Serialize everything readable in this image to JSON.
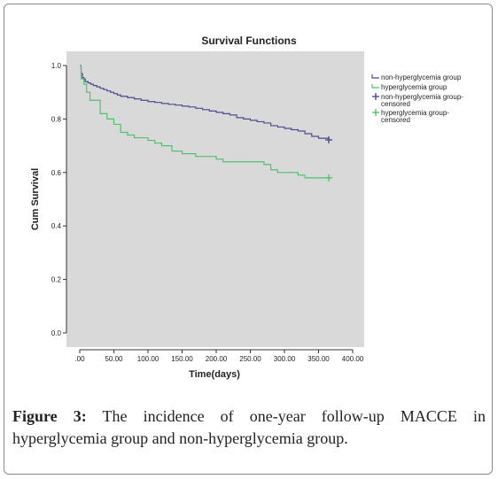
{
  "chart_data": {
    "type": "line",
    "title": "Survival Functions",
    "xlabel": "Time(days)",
    "ylabel": "Cum Survival",
    "xlim": [
      0,
      400
    ],
    "ylim": [
      0,
      1.0
    ],
    "x_ticks": [
      ".00",
      "50.00",
      "100.00",
      "150.00",
      "200.00",
      "250.00",
      "300.00",
      "350.00",
      "400.00"
    ],
    "y_ticks": [
      "0.0",
      "0.2",
      "0.4",
      "0.6",
      "0.8",
      "1.0"
    ],
    "grid": false,
    "legend_position": "right",
    "plot_background": "#d9d9d9",
    "series": [
      {
        "name": "non-hyperglycemia group",
        "color": "#4b4b8f",
        "step": true,
        "points": [
          [
            0,
            1.0
          ],
          [
            2,
            0.97
          ],
          [
            4,
            0.955
          ],
          [
            6,
            0.95
          ],
          [
            8,
            0.94
          ],
          [
            12,
            0.935
          ],
          [
            16,
            0.93
          ],
          [
            20,
            0.925
          ],
          [
            25,
            0.92
          ],
          [
            30,
            0.915
          ],
          [
            35,
            0.91
          ],
          [
            40,
            0.905
          ],
          [
            45,
            0.9
          ],
          [
            50,
            0.895
          ],
          [
            55,
            0.89
          ],
          [
            60,
            0.885
          ],
          [
            70,
            0.88
          ],
          [
            80,
            0.875
          ],
          [
            90,
            0.87
          ],
          [
            100,
            0.865
          ],
          [
            110,
            0.862
          ],
          [
            120,
            0.858
          ],
          [
            130,
            0.855
          ],
          [
            140,
            0.852
          ],
          [
            150,
            0.848
          ],
          [
            160,
            0.845
          ],
          [
            170,
            0.84
          ],
          [
            180,
            0.835
          ],
          [
            190,
            0.83
          ],
          [
            200,
            0.825
          ],
          [
            210,
            0.82
          ],
          [
            220,
            0.815
          ],
          [
            230,
            0.805
          ],
          [
            240,
            0.8
          ],
          [
            250,
            0.795
          ],
          [
            260,
            0.79
          ],
          [
            270,
            0.785
          ],
          [
            280,
            0.775
          ],
          [
            290,
            0.77
          ],
          [
            300,
            0.765
          ],
          [
            310,
            0.76
          ],
          [
            320,
            0.755
          ],
          [
            330,
            0.745
          ],
          [
            340,
            0.735
          ],
          [
            350,
            0.728
          ],
          [
            365,
            0.722
          ]
        ]
      },
      {
        "name": "hyperglycemia group",
        "color": "#4fc26b",
        "step": true,
        "points": [
          [
            0,
            1.0
          ],
          [
            2,
            0.95
          ],
          [
            6,
            0.93
          ],
          [
            10,
            0.9
          ],
          [
            15,
            0.87
          ],
          [
            30,
            0.82
          ],
          [
            40,
            0.8
          ],
          [
            50,
            0.78
          ],
          [
            60,
            0.75
          ],
          [
            70,
            0.74
          ],
          [
            80,
            0.73
          ],
          [
            100,
            0.72
          ],
          [
            110,
            0.71
          ],
          [
            120,
            0.7
          ],
          [
            135,
            0.68
          ],
          [
            150,
            0.67
          ],
          [
            170,
            0.66
          ],
          [
            200,
            0.65
          ],
          [
            210,
            0.64
          ],
          [
            270,
            0.63
          ],
          [
            280,
            0.61
          ],
          [
            290,
            0.6
          ],
          [
            320,
            0.59
          ],
          [
            330,
            0.58
          ],
          [
            365,
            0.58
          ]
        ]
      },
      {
        "name": "non-hyperglycemia group-censored",
        "color": "#4b4b8f",
        "marker": "+",
        "points": [
          [
            365,
            0.722
          ]
        ]
      },
      {
        "name": "hyperglycemia group-censored",
        "color": "#4fc26b",
        "marker": "+",
        "points": [
          [
            365,
            0.58
          ]
        ]
      }
    ]
  },
  "legend": {
    "items": [
      {
        "lines": [
          "non-hyperglycemia group"
        ],
        "color": "#4b4b8f",
        "symbol": "line"
      },
      {
        "lines": [
          "hyperglycemia group"
        ],
        "color": "#4fc26b",
        "symbol": "line"
      },
      {
        "lines": [
          "non-hyperglycemia group-",
          "censored"
        ],
        "color": "#4b4b8f",
        "symbol": "plus"
      },
      {
        "lines": [
          "hyperglycemia group-",
          "censored"
        ],
        "color": "#4fc26b",
        "symbol": "plus"
      }
    ]
  },
  "caption": {
    "label": "Figure 3:",
    "text": " The incidence of one-year follow-up MACCE in hyperglycemia group and non-hyperglycemia group."
  }
}
